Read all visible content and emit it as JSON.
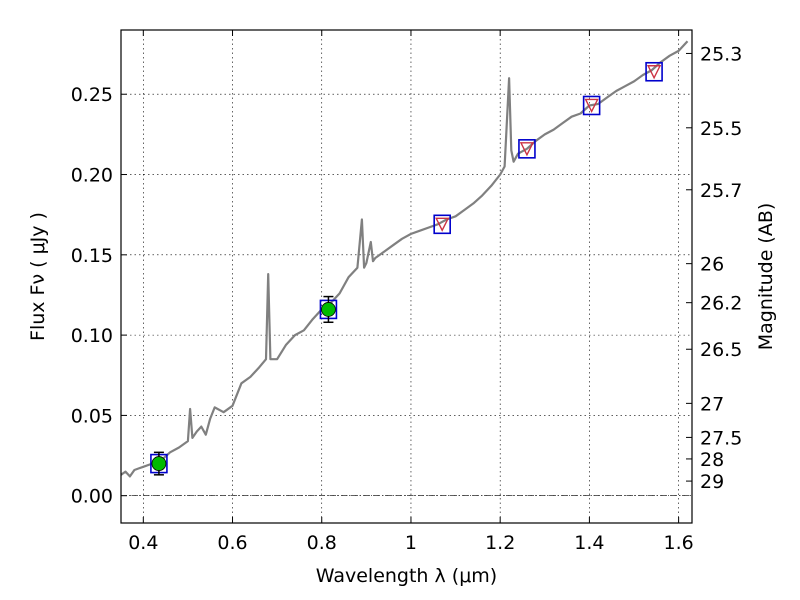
{
  "chart_data": {
    "type": "line",
    "xlabel": "Wavelength  λ (μm)",
    "ylabel_left": "Flux  Fν  ( μJy )",
    "ylabel_right": "Magnitude (AB)",
    "xlim": [
      0.35,
      1.63
    ],
    "ylim": [
      -0.017,
      0.29
    ],
    "grid": true,
    "x_ticks": [
      0.4,
      0.6,
      0.8,
      1.0,
      1.2,
      1.4,
      1.6
    ],
    "x_tick_labels": [
      "0.4",
      "0.6",
      "0.8",
      "1",
      "1.2",
      "1.4",
      "1.6"
    ],
    "y_ticks": [
      0.0,
      0.05,
      0.1,
      0.15,
      0.2,
      0.25
    ],
    "y_tick_labels": [
      "0.00",
      "0.05",
      "0.10",
      "0.15",
      "0.20",
      "0.25"
    ],
    "mag_ticks": [
      {
        "label": "25.3",
        "flux": 0.2754
      },
      {
        "label": "25.5",
        "flux": 0.2291
      },
      {
        "label": "25.7",
        "flux": 0.1905
      },
      {
        "label": "26",
        "flux": 0.1445
      },
      {
        "label": "26.2",
        "flux": 0.1202
      },
      {
        "label": "26.5",
        "flux": 0.0912
      },
      {
        "label": "27",
        "flux": 0.0575
      },
      {
        "label": "27.5",
        "flux": 0.0363
      },
      {
        "label": "28",
        "flux": 0.0229
      },
      {
        "label": "29",
        "flux": 0.0091
      }
    ],
    "zero_line": 0.0,
    "colors": {
      "spectrum": "#808080",
      "model_box": "#0000cc",
      "triangle": "#cc3344",
      "detection": "#00bb00",
      "errorbar": "#000000",
      "grid": "#000000"
    },
    "series": [
      {
        "name": "spectrum",
        "kind": "line",
        "x": [
          0.35,
          0.36,
          0.37,
          0.38,
          0.39,
          0.4,
          0.42,
          0.44,
          0.46,
          0.48,
          0.5,
          0.505,
          0.51,
          0.52,
          0.53,
          0.54,
          0.55,
          0.56,
          0.58,
          0.6,
          0.62,
          0.64,
          0.66,
          0.675,
          0.68,
          0.685,
          0.7,
          0.72,
          0.74,
          0.76,
          0.78,
          0.8,
          0.82,
          0.84,
          0.86,
          0.88,
          0.89,
          0.895,
          0.9,
          0.91,
          0.915,
          0.92,
          0.94,
          0.96,
          0.98,
          1.0,
          1.02,
          1.04,
          1.06,
          1.08,
          1.1,
          1.12,
          1.14,
          1.16,
          1.18,
          1.2,
          1.21,
          1.22,
          1.225,
          1.23,
          1.24,
          1.26,
          1.28,
          1.3,
          1.32,
          1.34,
          1.36,
          1.38,
          1.4,
          1.42,
          1.44,
          1.46,
          1.48,
          1.5,
          1.52,
          1.54,
          1.56,
          1.58,
          1.6,
          1.62
        ],
        "y": [
          0.013,
          0.015,
          0.012,
          0.016,
          0.017,
          0.018,
          0.02,
          0.022,
          0.027,
          0.03,
          0.034,
          0.054,
          0.036,
          0.04,
          0.043,
          0.038,
          0.048,
          0.055,
          0.052,
          0.056,
          0.07,
          0.074,
          0.08,
          0.085,
          0.138,
          0.085,
          0.085,
          0.094,
          0.1,
          0.103,
          0.11,
          0.116,
          0.12,
          0.126,
          0.136,
          0.142,
          0.172,
          0.142,
          0.145,
          0.158,
          0.146,
          0.148,
          0.152,
          0.156,
          0.16,
          0.163,
          0.165,
          0.167,
          0.169,
          0.172,
          0.174,
          0.178,
          0.182,
          0.187,
          0.193,
          0.2,
          0.205,
          0.26,
          0.215,
          0.208,
          0.213,
          0.216,
          0.221,
          0.225,
          0.228,
          0.232,
          0.236,
          0.238,
          0.243,
          0.244,
          0.248,
          0.252,
          0.255,
          0.258,
          0.262,
          0.265,
          0.27,
          0.274,
          0.277,
          0.283
        ]
      },
      {
        "name": "model_photometry",
        "kind": "square",
        "x": [
          0.435,
          0.815,
          1.07,
          1.26,
          1.405,
          1.545
        ],
        "y": [
          0.02,
          0.116,
          0.169,
          0.216,
          0.243,
          0.264
        ]
      },
      {
        "name": "upper_limits",
        "kind": "triangle_down",
        "x": [
          1.07,
          1.26,
          1.405,
          1.545
        ],
        "y": [
          0.169,
          0.216,
          0.243,
          0.264
        ]
      },
      {
        "name": "detections",
        "kind": "circle",
        "x": [
          0.435,
          0.815
        ],
        "y": [
          0.02,
          0.116
        ],
        "err": [
          0.007,
          0.008
        ]
      }
    ]
  }
}
